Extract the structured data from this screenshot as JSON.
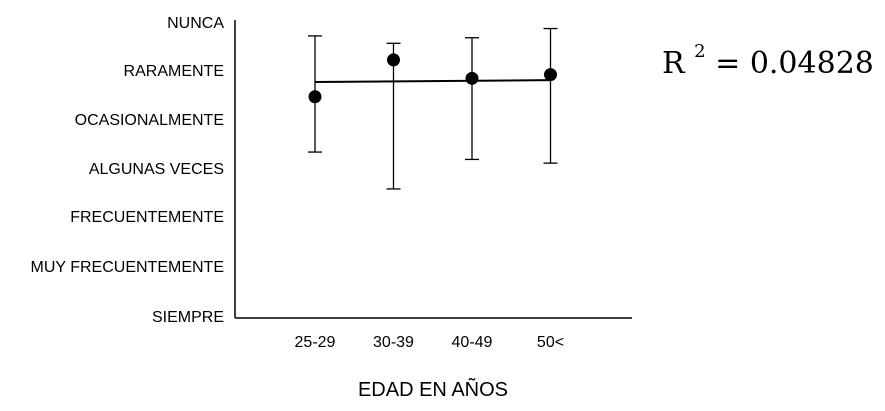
{
  "chart_data": {
    "type": "scatter",
    "title": "",
    "xlabel": "EDAD EN AÑOS",
    "ylabel": "",
    "categories": [
      "25-29",
      "30-39",
      "40-49",
      "50<"
    ],
    "y_categories": [
      "NUNCA",
      "RARAMENTE",
      "OCASIONALMENTE",
      "ALGUNAS VECES",
      "FRECUENTEMENTE",
      "MUY FRECUENTEMENTE",
      "SIEMPRE"
    ],
    "y_values": [
      6,
      7,
      6.5,
      6.6
    ],
    "y_error_low": [
      4.5,
      3.5,
      4.3,
      4.2
    ],
    "y_error_high": [
      7.65,
      7.45,
      7.6,
      7.85
    ],
    "trendline": {
      "start": 6.4,
      "end": 6.45
    },
    "ylim": [
      0,
      8
    ],
    "annotation": {
      "base": "R",
      "exponent": "2",
      "equals_value": "= 0.04828"
    },
    "grid": false,
    "colors": {
      "marker": "#000000",
      "line": "#000000",
      "axis": "#000000"
    }
  }
}
